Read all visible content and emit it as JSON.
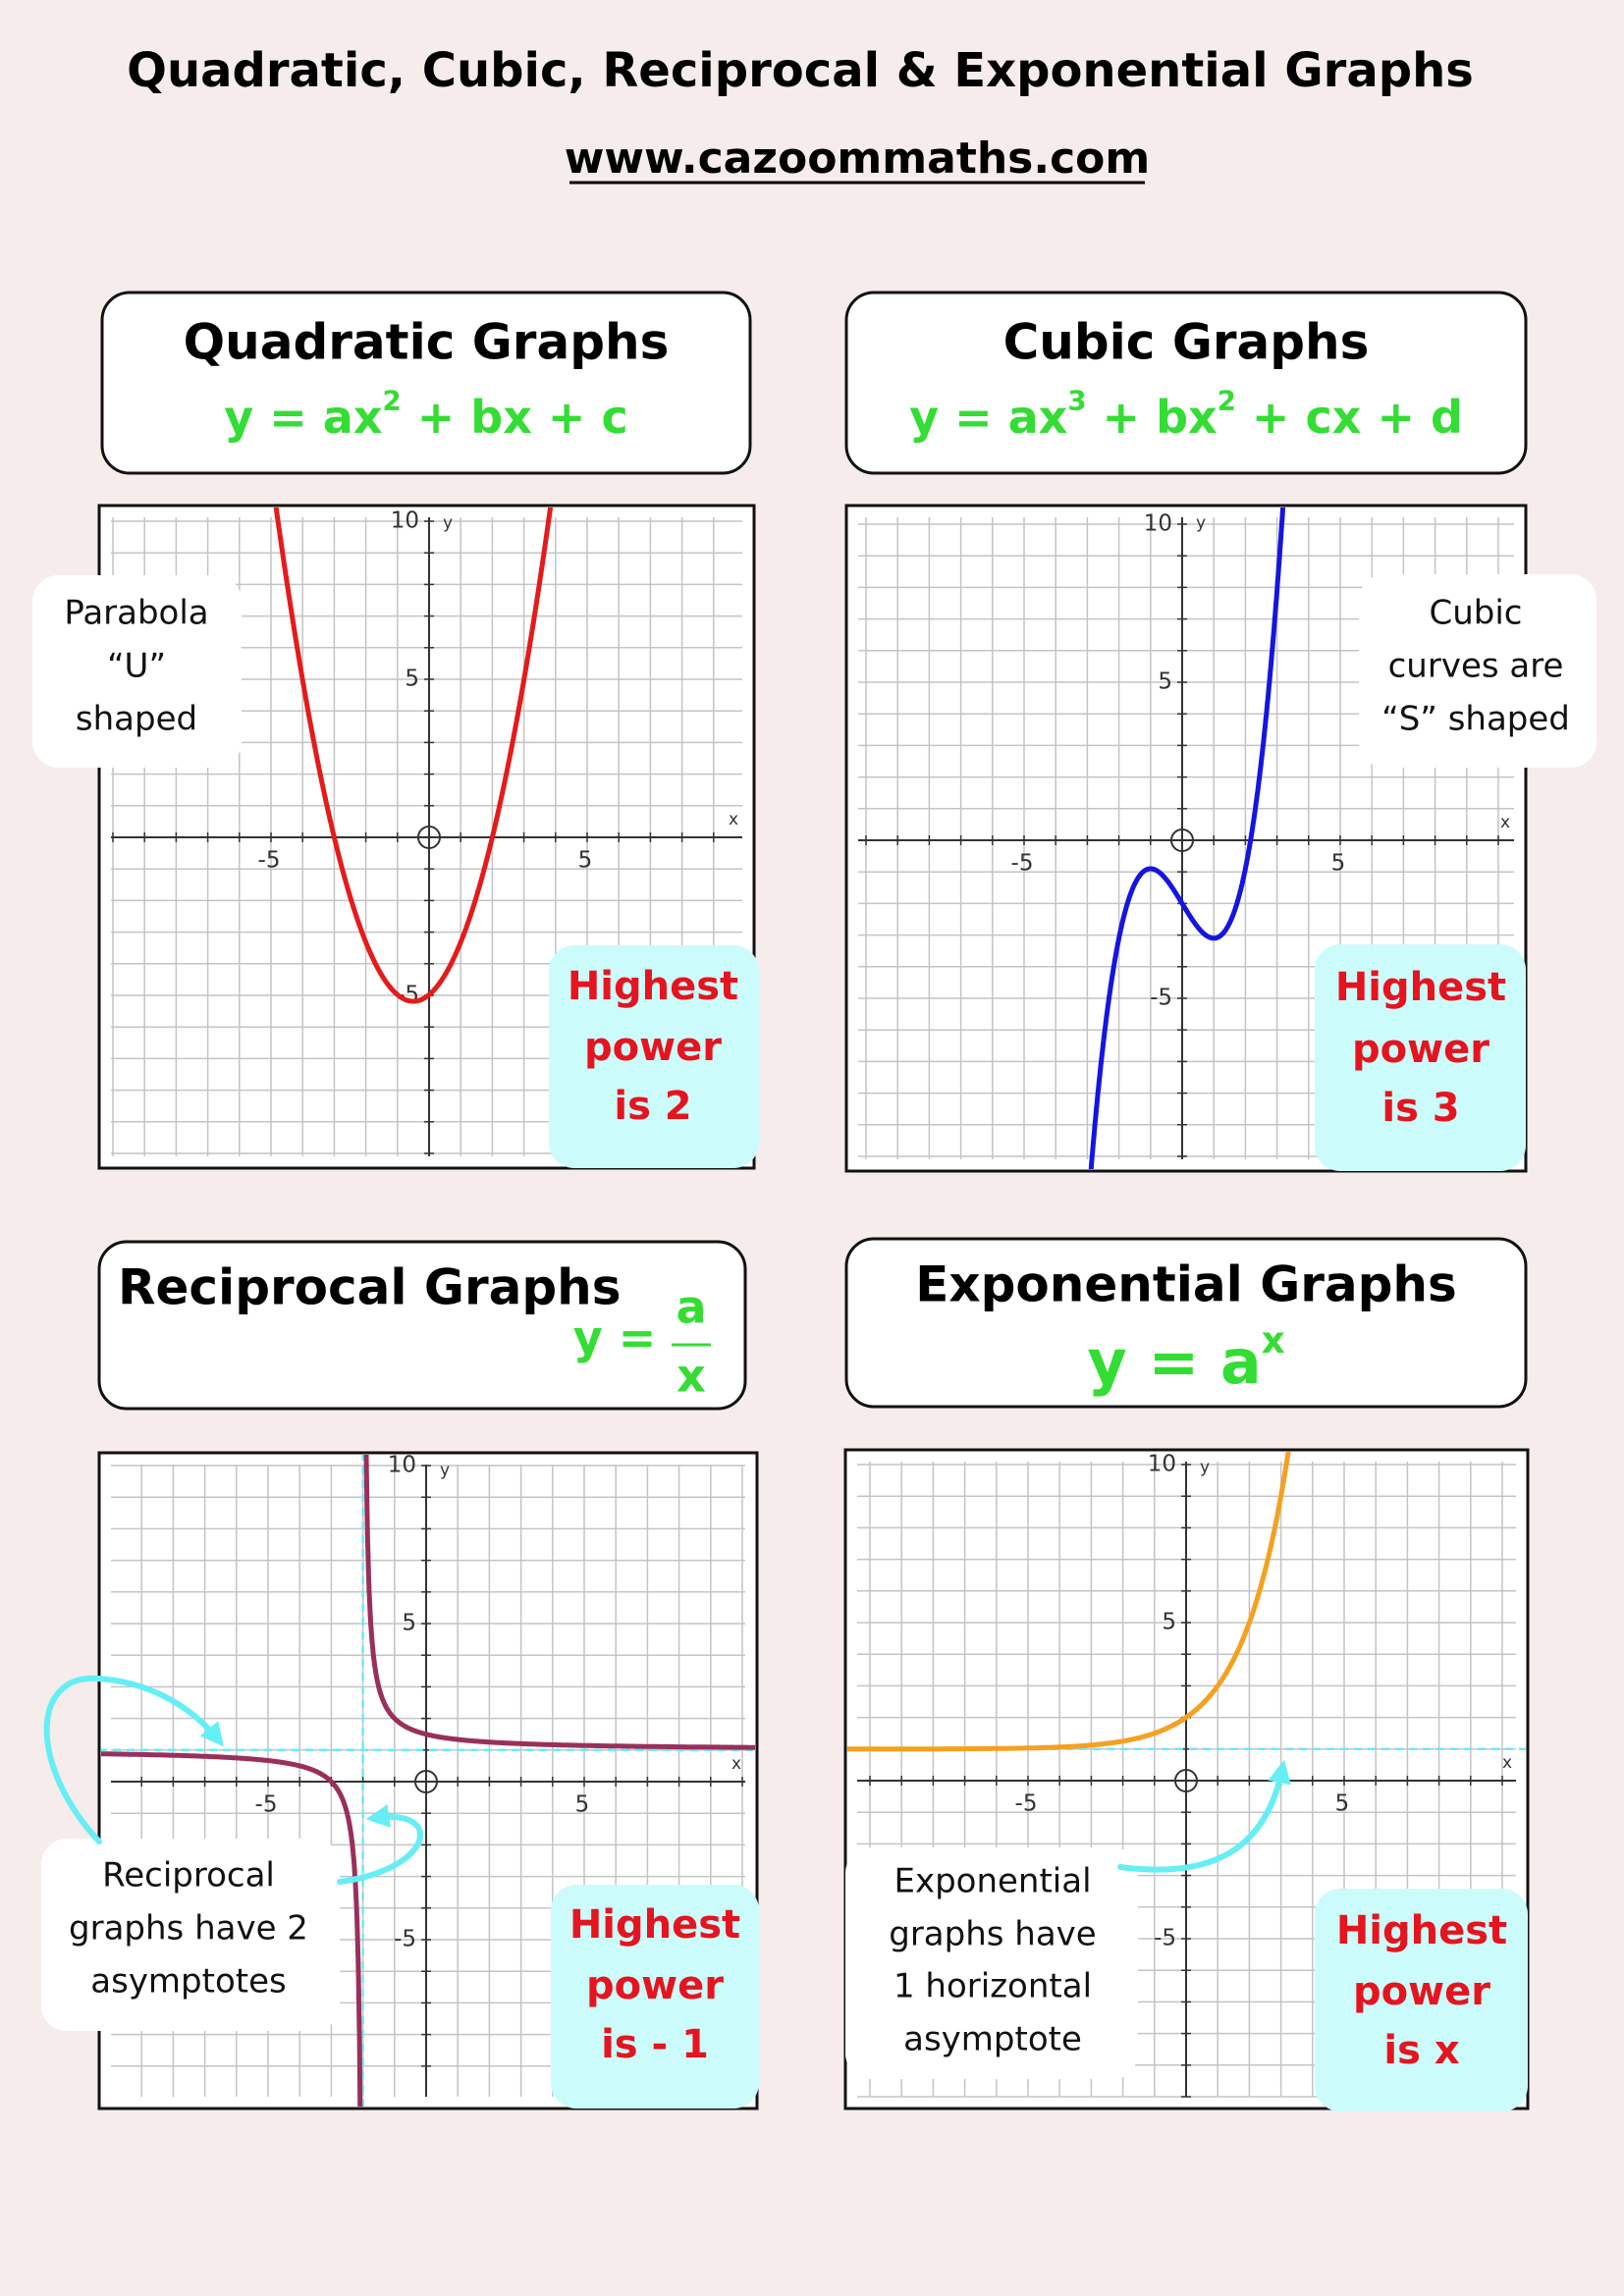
{
  "header": {
    "title": "Quadratic, Cubic, Reciprocal & Exponential Graphs",
    "url": "www.cazoommaths.com"
  },
  "panels": [
    {
      "title": "Quadratic Graphs",
      "equation": [
        "y = ax",
        "2",
        " + bx + c"
      ],
      "note": [
        "Parabola",
        "“U”",
        "shaped"
      ],
      "power": [
        "Highest",
        "power",
        "is 2"
      ],
      "axes": {
        "x_label": "x",
        "y_label": "y",
        "x_ticks": [
          -5,
          5
        ],
        "y_ticks": [
          10,
          5,
          -5
        ]
      }
    },
    {
      "title": "Cubic Graphs",
      "equation": [
        "y = ax",
        "3",
        " + bx",
        "2",
        " + cx + d"
      ],
      "note": [
        "Cubic",
        "curves are",
        "“S” shaped"
      ],
      "power": [
        "Highest",
        "power",
        "is 3"
      ],
      "axes": {
        "x_label": "x",
        "y_label": "y",
        "x_ticks": [
          -5,
          5
        ],
        "y_ticks": [
          10,
          5,
          -5
        ]
      }
    },
    {
      "title": "Reciprocal Graphs",
      "equation": [
        "y =",
        "a",
        "x"
      ],
      "note": [
        "Reciprocal",
        "graphs have 2",
        "asymptotes"
      ],
      "power": [
        "Highest",
        "power",
        "is - 1"
      ],
      "axes": {
        "x_label": "x",
        "y_label": "y",
        "x_ticks": [
          -5,
          5
        ],
        "y_ticks": [
          10,
          5,
          -5
        ]
      }
    },
    {
      "title": "Exponential Graphs",
      "equation": [
        "y = a",
        "x"
      ],
      "note": [
        "Exponential",
        "graphs have",
        "1 horizontal",
        "asymptote"
      ],
      "power": [
        "Highest",
        "power",
        "is x"
      ],
      "axes": {
        "x_label": "x",
        "y_label": "y",
        "x_ticks": [
          -5,
          5
        ],
        "y_ticks": [
          10,
          5,
          -5
        ]
      }
    }
  ]
}
